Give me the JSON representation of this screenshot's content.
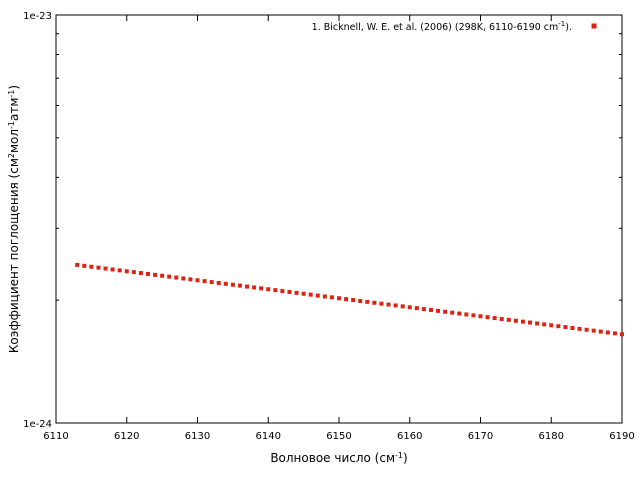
{
  "chart_data": {
    "type": "scatter",
    "x_axis": {
      "label_main": "Волновое число (см",
      "label_sup": "-1",
      "label_end": ")",
      "ticks": [
        6110,
        6120,
        6130,
        6140,
        6150,
        6160,
        6170,
        6180,
        6190
      ],
      "tick_labels": [
        "6110",
        "6120",
        "6130",
        "6140",
        "6150",
        "6160",
        "6170",
        "6180",
        "6190"
      ],
      "range": [
        6110,
        6190
      ]
    },
    "y_axis": {
      "label_parts": [
        "Коэффициент поглощения (см",
        "2",
        "мол",
        "-1",
        "атм",
        "-1",
        ")"
      ],
      "scale": "log",
      "range": [
        1e-24,
        1e-23
      ],
      "major_ticks": [
        1e-24,
        1e-23
      ],
      "tick_labels": [
        "1e-24",
        "1e-23"
      ],
      "minor_ticks": [
        2e-24,
        3e-24,
        4e-24,
        5e-24,
        6e-24,
        7e-24,
        8e-24,
        9e-24
      ]
    },
    "series": [
      {
        "name_main": "1. Bicknell, W. E. et al. (2006) (298K, 6110-6190 cm",
        "name_sup": "-1",
        "name_end": ").",
        "color": "#dd2211",
        "x_start": 6113,
        "x_end": 6190,
        "x_step": 1,
        "y_start": 2.44e-24,
        "y_end": 1.65e-24
      }
    ],
    "legend_position": "top-right",
    "grid": false
  }
}
